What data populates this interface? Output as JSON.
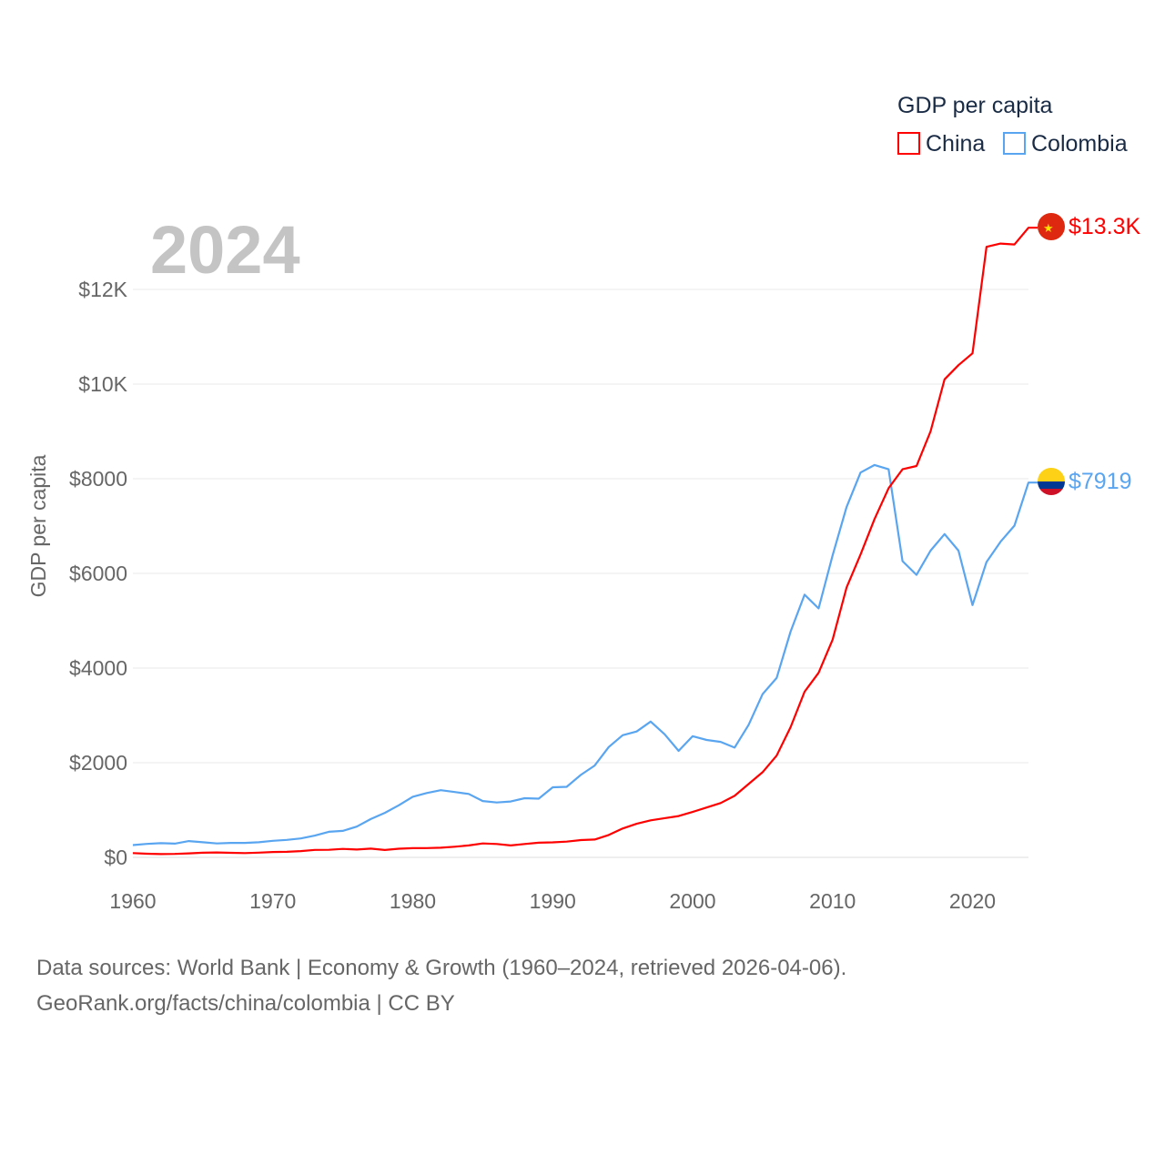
{
  "chart_data": {
    "type": "line",
    "title": "GDP per capita",
    "ylabel": "GDP per capita",
    "xlabel": "",
    "year_label": "2024",
    "xlim": [
      1960,
      2024
    ],
    "ylim": [
      0,
      12000
    ],
    "x_ticks": [
      "1960",
      "1970",
      "1980",
      "1990",
      "2000",
      "2010",
      "2020"
    ],
    "y_ticks": [
      {
        "value": 0,
        "label": "$0"
      },
      {
        "value": 2000,
        "label": "$2000"
      },
      {
        "value": 4000,
        "label": "$4000"
      },
      {
        "value": 6000,
        "label": "$6000"
      },
      {
        "value": 8000,
        "label": "$8000"
      },
      {
        "value": 10000,
        "label": "$10K"
      },
      {
        "value": 12000,
        "label": "$12K"
      }
    ],
    "grid": true,
    "legend_position": "top-right",
    "x_start": 1960,
    "series": [
      {
        "name": "China",
        "color": "#ff0000",
        "end_label": "$13.3K",
        "flag": "china-flag",
        "values": [
          90,
          76,
          70,
          74,
          85,
          98,
          104,
          97,
          91,
          100,
          113,
          118,
          132,
          157,
          160,
          178,
          165,
          185,
          156,
          183,
          195,
          197,
          203,
          225,
          251,
          294,
          282,
          251,
          283,
          310,
          318,
          333,
          366,
          377,
          473,
          610,
          709,
          782,
          829,
          873,
          959,
          1053,
          1149,
          1300,
          1550,
          1800,
          2150,
          2750,
          3500,
          3900,
          4600,
          5700,
          6400,
          7150,
          7800,
          8200,
          8270,
          9000,
          10100,
          10400,
          10650,
          12900,
          12970,
          12950,
          13303
        ]
      },
      {
        "name": "Colombia",
        "color": "#5aa5f0",
        "end_label": "$7919",
        "flag": "colombia-flag",
        "values": [
          260,
          285,
          300,
          290,
          345,
          320,
          295,
          305,
          305,
          320,
          350,
          370,
          400,
          460,
          540,
          560,
          650,
          810,
          940,
          1100,
          1280,
          1360,
          1420,
          1380,
          1340,
          1190,
          1160,
          1180,
          1250,
          1240,
          1480,
          1490,
          1740,
          1940,
          2330,
          2580,
          2660,
          2870,
          2600,
          2250,
          2560,
          2480,
          2440,
          2320,
          2800,
          3450,
          3790,
          4770,
          5550,
          5260,
          6380,
          7400,
          8130,
          8290,
          8200,
          6260,
          5970,
          6480,
          6830,
          6480,
          5330,
          6240,
          6670,
          7010,
          7919
        ]
      }
    ]
  },
  "footer": {
    "line1": "Data sources: World Bank | Economy & Growth (1960–2024, retrieved 2026-04-06).",
    "line2": "GeoRank.org/facts/china/colombia | CC BY"
  }
}
